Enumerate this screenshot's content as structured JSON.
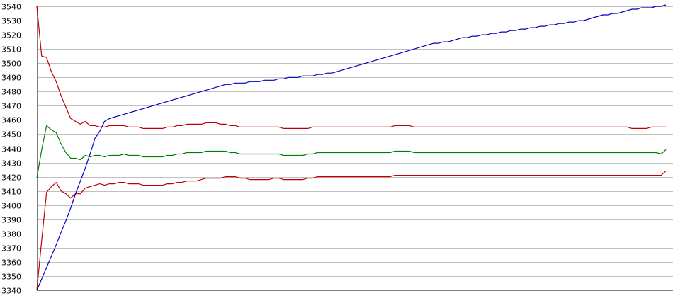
{
  "chart_data": {
    "type": "line",
    "title": "",
    "xlabel": "",
    "ylabel": "",
    "ylim": [
      3340,
      3540
    ],
    "yticks": [
      3340,
      3350,
      3360,
      3370,
      3380,
      3390,
      3400,
      3410,
      3420,
      3430,
      3440,
      3450,
      3460,
      3470,
      3480,
      3490,
      3500,
      3510,
      3520,
      3530,
      3540
    ],
    "grid": true,
    "legend": "none",
    "x_count": 131,
    "colors": {
      "grid": "#c0c0c0",
      "axis": "#808080",
      "upper_band": "#c00000",
      "middle": "#008000",
      "lower_band": "#c00000",
      "trend": "#0000c0"
    },
    "series": [
      {
        "color": "#c00000",
        "values": [
          3540,
          3505,
          3504,
          3494,
          3487,
          3477,
          3469,
          3461,
          3459,
          3457,
          3459,
          3456,
          3456,
          3455,
          3455,
          3456,
          3456,
          3456,
          3456,
          3455,
          3455,
          3455,
          3454,
          3454,
          3454,
          3454,
          3454,
          3455,
          3455,
          3456,
          3456,
          3457,
          3457,
          3457,
          3457,
          3458,
          3458,
          3458,
          3457,
          3457,
          3456,
          3456,
          3455,
          3455,
          3455,
          3455,
          3455,
          3455,
          3455,
          3455,
          3455,
          3454,
          3454,
          3454,
          3454,
          3454,
          3454,
          3455,
          3455,
          3455,
          3455,
          3455,
          3455,
          3455,
          3455,
          3455,
          3455,
          3455,
          3455,
          3455,
          3455,
          3455,
          3455,
          3455,
          3456,
          3456,
          3456,
          3456,
          3455,
          3455,
          3455,
          3455,
          3455,
          3455,
          3455,
          3455,
          3455,
          3455,
          3455,
          3455,
          3455,
          3455,
          3455,
          3455,
          3455,
          3455,
          3455,
          3455,
          3455,
          3455,
          3455,
          3455,
          3455,
          3455,
          3455,
          3455,
          3455,
          3455,
          3455,
          3455,
          3455,
          3455,
          3455,
          3455,
          3455,
          3455,
          3455,
          3455,
          3455,
          3455,
          3455,
          3455,
          3455,
          3454,
          3454,
          3454,
          3454,
          3455,
          3455,
          3455,
          3455
        ]
      },
      {
        "color": "#008000",
        "values": [
          3419,
          3439,
          3456,
          3453,
          3451,
          3443,
          3437,
          3433,
          3433,
          3432,
          3435,
          3434,
          3435,
          3435,
          3434,
          3435,
          3435,
          3435,
          3436,
          3435,
          3435,
          3435,
          3434,
          3434,
          3434,
          3434,
          3434,
          3435,
          3435,
          3436,
          3436,
          3437,
          3437,
          3437,
          3437,
          3438,
          3438,
          3438,
          3438,
          3438,
          3437,
          3437,
          3436,
          3436,
          3436,
          3436,
          3436,
          3436,
          3436,
          3436,
          3436,
          3435,
          3435,
          3435,
          3435,
          3435,
          3436,
          3436,
          3437,
          3437,
          3437,
          3437,
          3437,
          3437,
          3437,
          3437,
          3437,
          3437,
          3437,
          3437,
          3437,
          3437,
          3437,
          3437,
          3438,
          3438,
          3438,
          3438,
          3437,
          3437,
          3437,
          3437,
          3437,
          3437,
          3437,
          3437,
          3437,
          3437,
          3437,
          3437,
          3437,
          3437,
          3437,
          3437,
          3437,
          3437,
          3437,
          3437,
          3437,
          3437,
          3437,
          3437,
          3437,
          3437,
          3437,
          3437,
          3437,
          3437,
          3437,
          3437,
          3437,
          3437,
          3437,
          3437,
          3437,
          3437,
          3437,
          3437,
          3437,
          3437,
          3437,
          3437,
          3437,
          3437,
          3437,
          3437,
          3437,
          3437,
          3437,
          3436,
          3439
        ]
      },
      {
        "color": "#c00000",
        "values": [
          3340,
          3375,
          3409,
          3413,
          3416,
          3410,
          3408,
          3405,
          3408,
          3408,
          3412,
          3413,
          3414,
          3415,
          3414,
          3415,
          3415,
          3416,
          3416,
          3415,
          3415,
          3415,
          3414,
          3414,
          3414,
          3414,
          3414,
          3415,
          3415,
          3416,
          3416,
          3417,
          3417,
          3417,
          3418,
          3419,
          3419,
          3419,
          3419,
          3420,
          3420,
          3420,
          3419,
          3419,
          3418,
          3418,
          3418,
          3418,
          3418,
          3419,
          3419,
          3418,
          3418,
          3418,
          3418,
          3418,
          3419,
          3419,
          3420,
          3420,
          3420,
          3420,
          3420,
          3420,
          3420,
          3420,
          3420,
          3420,
          3420,
          3420,
          3420,
          3420,
          3420,
          3420,
          3421,
          3421,
          3421,
          3421,
          3421,
          3421,
          3421,
          3421,
          3421,
          3421,
          3421,
          3421,
          3421,
          3421,
          3421,
          3421,
          3421,
          3421,
          3421,
          3421,
          3421,
          3421,
          3421,
          3421,
          3421,
          3421,
          3421,
          3421,
          3421,
          3421,
          3421,
          3421,
          3421,
          3421,
          3421,
          3421,
          3421,
          3421,
          3421,
          3421,
          3421,
          3421,
          3421,
          3421,
          3421,
          3421,
          3421,
          3421,
          3421,
          3421,
          3421,
          3421,
          3421,
          3421,
          3421,
          3421,
          3424
        ]
      },
      {
        "color": "#0000c0",
        "values": [
          3340,
          3348,
          3356,
          3364,
          3372,
          3381,
          3389,
          3398,
          3408,
          3417,
          3426,
          3436,
          3447,
          3452,
          3459,
          3461,
          3462,
          3463,
          3464,
          3465,
          3466,
          3467,
          3468,
          3469,
          3470,
          3471,
          3472,
          3473,
          3474,
          3475,
          3476,
          3477,
          3478,
          3479,
          3480,
          3481,
          3482,
          3483,
          3484,
          3485,
          3485,
          3486,
          3486,
          3486,
          3487,
          3487,
          3487,
          3488,
          3488,
          3488,
          3489,
          3489,
          3490,
          3490,
          3490,
          3491,
          3491,
          3491,
          3492,
          3492,
          3493,
          3493,
          3494,
          3495,
          3496,
          3497,
          3498,
          3499,
          3500,
          3501,
          3502,
          3503,
          3504,
          3505,
          3506,
          3507,
          3508,
          3509,
          3510,
          3511,
          3512,
          3513,
          3514,
          3514,
          3515,
          3515,
          3516,
          3517,
          3518,
          3518,
          3519,
          3519,
          3520,
          3520,
          3521,
          3521,
          3522,
          3522,
          3523,
          3523,
          3524,
          3524,
          3525,
          3525,
          3526,
          3526,
          3527,
          3527,
          3528,
          3528,
          3529,
          3529,
          3530,
          3530,
          3531,
          3532,
          3533,
          3534,
          3534,
          3535,
          3535,
          3536,
          3537,
          3538,
          3538,
          3539,
          3539,
          3539,
          3540,
          3540,
          3541
        ]
      }
    ]
  }
}
